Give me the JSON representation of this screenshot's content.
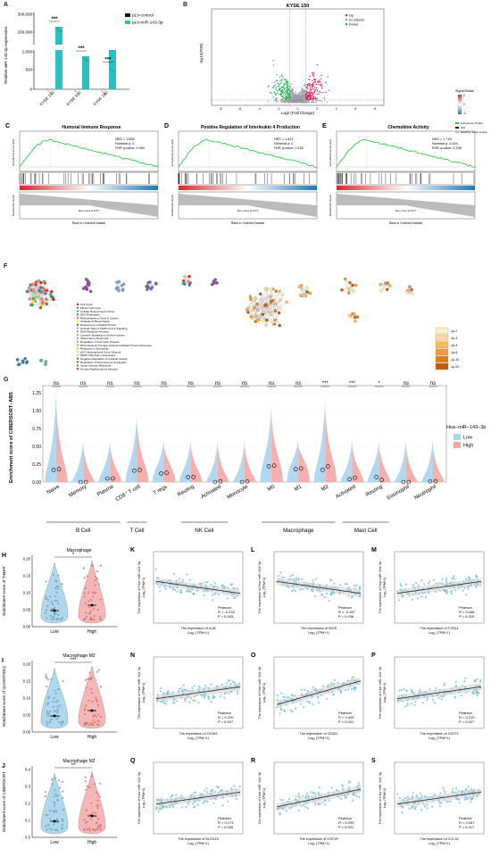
{
  "panel_A": {
    "label": "A",
    "ylabel": "Relative miR-143-3p expression",
    "legend": [
      "pLV-control",
      "pLV-miR-143-3p"
    ],
    "colors": {
      "control": "#111111",
      "mir": "#2bbfbf"
    },
    "yticks": [
      "300,000",
      "200,000",
      "1,000",
      "500",
      "0"
    ],
    "chart_data": {
      "type": "bar",
      "categories": [
        "KYSE 150",
        "KYSE 510",
        "KYSE 180"
      ],
      "series": [
        {
          "name": "pLV-control",
          "values": [
            1,
            1,
            1
          ]
        },
        {
          "name": "pLV-miR-143-3p",
          "values": [
            230000,
            880,
            1930
          ]
        }
      ],
      "sig": [
        "***",
        "***",
        "***"
      ]
    }
  },
  "panel_B": {
    "label": "B",
    "title": "KYSE 150",
    "xlabel": "Log2 (Fold Change)",
    "ylabel": "-log10(FDR)",
    "legend": [
      "Up",
      "no DEGS",
      "Down"
    ],
    "xticks": [
      "-8",
      "-6",
      "-4",
      "-2",
      "0",
      "2",
      "4",
      "6",
      "8"
    ],
    "colors": {
      "up": "#e0245e",
      "no": "#9aa0a6",
      "down": "#22b14c"
    }
  },
  "legend_right": {
    "title": "Signal2Noise",
    "items": [
      "Enrichment Profile",
      "Hits",
      "Ranking metric scores"
    ],
    "scale": [
      "2",
      "0",
      "-2"
    ]
  },
  "gsea": [
    {
      "label": "C",
      "title": "Humoral Immune Response",
      "nes": "NES = 1.855",
      "p": "Nominal p: 0",
      "fdr": "FDR q-value: 0.094",
      "xlabel": "Rank in Ordered Dataset",
      "ylabel_top": "Enrichment score (ES)",
      "ylabel_bot": "Ranked list metric",
      "zero": "Zero cross at 6177"
    },
    {
      "label": "D",
      "title": "Positive Regulation of Interleukin 4 Production",
      "nes": "NES = 1.812",
      "p": "Nominal p: 0",
      "fdr": "FDR q-value: 0.152",
      "xlabel": "Rank in Ordered Dataset",
      "ylabel_top": "Enrichment score (ES)",
      "ylabel_bot": "Ranked list metric",
      "zero": "Zero cross at 6177"
    },
    {
      "label": "E",
      "title": "Chemokine Activity",
      "nes": "NES = 1.716",
      "p": "Nominal p: 0.004",
      "fdr": "FDR q-value: 0.246",
      "xlabel": "Rank in Ordered Dataset",
      "ylabel_top": "Enrichment score (ES)",
      "ylabel_bot": "Ranked list metric",
      "zero": "Zero cross at 6177"
    }
  ],
  "panel_F": {
    "label": "F",
    "legend": [
      "Cell Cycle",
      "Mitotic Cell Cycle",
      "Cellular Responses to Stress",
      "DNA Replication",
      "Retinoblastoma Gene in Cancer",
      "Cholesterol Biosynthesis",
      "Response to Unfolded Protein",
      "Network Map of SARS-CoV-2 Signaling",
      "DNA Metabolic Process",
      "Cytokine Signaling in Immune system",
      "Inflammatory Response",
      "Regulation of Cell Cycle Process",
      "Photodynamic Therapy-induced Unfolded Protein Response",
      "Response to Wounding",
      "p53 Transcriptional Gene Network",
      "MAPK Membrane Associated",
      "Negative Regulation of Catalytic Activity",
      "Regulation of Chromosome Separation",
      "Innate Immune Response",
      "Human Papillomavirus Infection"
    ],
    "pscale": [
      "-1p-2",
      "-1p-3",
      "-1p-4",
      "-1p-6",
      "-1p-10",
      "-1p-20"
    ]
  },
  "panel_G": {
    "label": "G",
    "ylabel": "Enrichment score of CIBERSORT−ABS",
    "legend_title": "Hsa−miR−143−3p",
    "legend": [
      "Low",
      "High"
    ],
    "colors": {
      "low": "#a8d4ec",
      "high": "#f4a6a6"
    },
    "yticks": [
      "1.25",
      "1.00",
      "0.75",
      "0.50",
      "0.25",
      "0.00"
    ],
    "chart_data": {
      "type": "violin",
      "categories": [
        "Naive",
        "Memory",
        "Plasma",
        "CD8⁺ T cell",
        "T regs",
        "Resting",
        "Activated",
        "Monocyte",
        "M0",
        "M1",
        "M2",
        "Activated",
        "Resting",
        "Eosinophil",
        "Neutrophil"
      ],
      "sig": [
        "ns",
        "ns",
        "ns",
        "ns",
        "ns",
        "ns",
        "ns",
        "ns",
        "ns",
        "ns",
        "***",
        "***",
        "*",
        "ns",
        "ns"
      ],
      "median_low": [
        0.17,
        0.0,
        0.05,
        0.16,
        0.12,
        0.07,
        0.0,
        0.0,
        0.22,
        0.18,
        0.17,
        0.04,
        0.07,
        0.0,
        0.01
      ],
      "median_high": [
        0.18,
        0.0,
        0.05,
        0.17,
        0.13,
        0.07,
        0.01,
        0.01,
        0.23,
        0.19,
        0.22,
        0.06,
        0.03,
        0.0,
        0.01
      ],
      "ylim": [
        0,
        1.35
      ]
    },
    "groups": [
      "B Cell",
      "T Cell",
      "NK Cell",
      "Macrophage",
      "Mast Cell"
    ]
  },
  "violins_small": [
    {
      "label": "H",
      "title": "Macrophage",
      "ylabel": "Enrichment score of TIMER",
      "sig": "*",
      "cats": [
        "Low",
        "High"
      ],
      "yticks": [
        "0.20",
        "0.15",
        "0.10",
        "0.05",
        "0.00"
      ]
    },
    {
      "label": "I",
      "title": "Macrophage M2",
      "ylabel": "Enrichment score of QUANTISEQ",
      "sig": "***",
      "cats": [
        "Low",
        "High"
      ],
      "yticks": [
        "0.20",
        "0.15",
        "0.10",
        "0.05",
        "0.00"
      ]
    },
    {
      "label": "J",
      "title": "Macrophage M2",
      "ylabel": "Enrichment score of CIBERSORT",
      "sig": "**",
      "cats": [
        "Low",
        "High"
      ],
      "yticks": [
        "0.4",
        "0.3",
        "0.2",
        "0.1",
        "0.0"
      ]
    }
  ],
  "scatters": [
    {
      "label": "K",
      "xlabel": "The expression of IL1B",
      "r": "R = -0.233",
      "p": "P = 0.003",
      "slope": -1
    },
    {
      "label": "L",
      "xlabel": "The expression of iNOS",
      "r": "R = -0.167",
      "p": "P = 0.036",
      "slope": -1
    },
    {
      "label": "M",
      "xlabel": "The expression of TGFβ1",
      "r": "R = 0.186",
      "p": "P = 0.019",
      "slope": 1
    },
    {
      "label": "N",
      "xlabel": "The expression of CD163",
      "r": "R = 0.220",
      "p": "P = 0.007",
      "slope": 1
    },
    {
      "label": "O",
      "xlabel": "The expression of CD301",
      "r": "R = 0.425",
      "p": "P < 0.001",
      "slope": 2
    },
    {
      "label": "P",
      "xlabel": "The expression of CD273",
      "r": "R = 0.210",
      "p": "P = 0.007",
      "slope": 1
    },
    {
      "label": "Q",
      "xlabel": "The expression of ALOX15",
      "r": "R = 0.173",
      "p": "P = 0.026",
      "slope": 1
    },
    {
      "label": "R",
      "xlabel": "The expression of CSF1R",
      "r": "R = 0.293",
      "p": "P < 0.001",
      "slope": 1.5
    },
    {
      "label": "S",
      "xlabel": "The expression of CCL18",
      "r": "R = 0.187",
      "p": "P = 0.017",
      "slope": 1
    }
  ],
  "scatter_common": {
    "ylabel": "The expression of Hsa−miR−143−3p",
    "yunit": "Log₂ (TPM+1)",
    "xunit": "Log₂ (TPM+1)",
    "method": "Pearson",
    "color": "#6fb8d8"
  }
}
